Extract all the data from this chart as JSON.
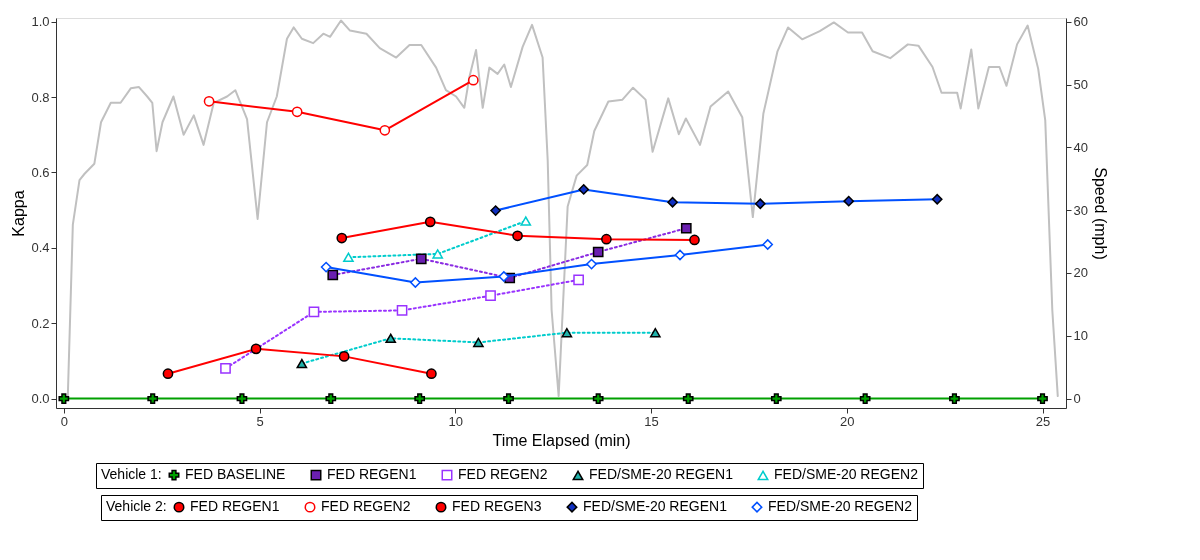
{
  "chart_data": {
    "type": "line",
    "xlabel": "Time Elapsed (min)",
    "ylabel": "Kappa",
    "y2label": "Speed (mph)",
    "xlim": [
      -0.2,
      25.6
    ],
    "xticks": [
      0,
      5,
      10,
      15,
      20,
      25
    ],
    "ylim": [
      -0.025,
      1.01
    ],
    "yticks": [
      {
        "value": 0,
        "label": "0.0"
      },
      {
        "value": 0.2,
        "label": "0.2"
      },
      {
        "value": 0.4,
        "label": "0.4"
      },
      {
        "value": 0.6,
        "label": "0.6"
      },
      {
        "value": 0.8,
        "label": "0.8"
      },
      {
        "value": 1,
        "label": "1.0"
      }
    ],
    "y2lim": [
      -1.5,
      60.6
    ],
    "y2ticks": [
      0,
      10,
      20,
      30,
      40,
      50,
      60
    ],
    "grid": false,
    "legend": "bottom",
    "legend_title": [
      "Vehicle 1:",
      "Vehicle 2:"
    ],
    "series": [
      {
        "axis": "y2",
        "color": "#c0c0c0",
        "marker": "none",
        "line_style": "solid",
        "x": [
          0,
          0.1,
          0.23,
          0.4,
          0.53,
          0.78,
          0.95,
          1.2,
          1.45,
          1.71,
          1.92,
          2.13,
          2.26,
          2.37,
          2.52,
          2.8,
          3.06,
          3.32,
          3.57,
          3.83,
          4.17,
          4.38,
          4.68,
          4.95,
          5.19,
          5.44,
          5.7,
          5.87,
          6.08,
          6.37,
          6.63,
          6.8,
          7.08,
          7.31,
          7.73,
          8.07,
          8.49,
          8.83,
          9.13,
          9.51,
          9.76,
          10.02,
          10.23,
          10.36,
          10.53,
          10.7,
          10.87,
          11.08,
          11.25,
          11.42,
          11.72,
          11.96,
          12.23,
          12.36,
          12.46,
          12.64,
          12.87,
          13.1,
          13.37,
          13.55,
          13.91,
          14.27,
          14.54,
          14.86,
          15.04,
          15.44,
          15.71,
          15.89,
          16.25,
          16.52,
          16.97,
          17.33,
          17.6,
          17.87,
          18.23,
          18.5,
          18.86,
          19.31,
          19.67,
          20.03,
          20.39,
          20.66,
          21.11,
          21.56,
          21.83,
          22.19,
          22.42,
          22.82,
          22.91,
          23.18,
          23.36,
          23.63,
          23.9,
          24.08,
          24.35,
          24.62,
          24.89,
          25.07,
          25.25,
          25.39
        ],
        "values": [
          0,
          0,
          27.7,
          34.8,
          35.8,
          37.4,
          44.0,
          47.1,
          47.1,
          49.4,
          49.6,
          48.1,
          47.1,
          39.4,
          44.0,
          48.1,
          42.0,
          45.1,
          40.4,
          47.1,
          48.1,
          49.1,
          44.5,
          28.6,
          44.0,
          48.1,
          57.3,
          59.1,
          57.3,
          56.6,
          58.1,
          57.6,
          60.2,
          58.6,
          58.1,
          55.8,
          54.3,
          56.3,
          56.3,
          52.7,
          49.1,
          48.1,
          46.3,
          51.2,
          55.5,
          46.3,
          52.7,
          51.7,
          53.2,
          49.6,
          56.0,
          59.5,
          54.3,
          38.0,
          14.1,
          0.4,
          30.6,
          35.5,
          37.2,
          42.6,
          47.3,
          47.6,
          49.5,
          47.6,
          39.3,
          47.8,
          42.1,
          44.6,
          40.4,
          46.5,
          48.9,
          44.8,
          28.9,
          45.4,
          55.3,
          59.1,
          57.2,
          58.5,
          59.9,
          58.3,
          58.3,
          55.3,
          54.2,
          56.4,
          56.2,
          52.8,
          48.7,
          48.7,
          46.2,
          55.6,
          46.2,
          52.8,
          52.8,
          49.8,
          56.4,
          59.4,
          52.5,
          44.3,
          14.1,
          0.4
        ]
      },
      {
        "name": "FED BASELINE",
        "color": "#00a000",
        "marker": "cross",
        "line_style": "solid",
        "x": [
          0,
          2.27,
          4.55,
          6.82,
          9.09,
          11.36,
          13.65,
          15.95,
          18.2,
          20.47,
          22.75,
          25.0
        ],
        "values": [
          0,
          0,
          0,
          0,
          0,
          0,
          0,
          0,
          0,
          0,
          0,
          0
        ]
      },
      {
        "name": "FED REGEN1",
        "color": "#8a2be2",
        "colors": [
          "#6a1fb0",
          "#6a1fb0",
          "#6a1fb0",
          "#6a1fb0",
          "#6a1fb0"
        ],
        "marker": "square",
        "line_style": "dotted",
        "x": [
          6.87,
          9.13,
          11.39,
          13.65,
          15.9
        ],
        "values": [
          0.328,
          0.371,
          0.32,
          0.389,
          0.452
        ]
      },
      {
        "name": "FED REGEN2",
        "color": "#9933ff",
        "colors": [
          "#ffffff",
          "#ffffff",
          "#ffffff",
          "#ffffff",
          "#ffffff"
        ],
        "marker": "square",
        "line_style": "dotted",
        "x": [
          4.13,
          6.39,
          8.64,
          10.9,
          13.15
        ],
        "values": [
          0.08,
          0.23,
          0.234,
          0.273,
          0.315
        ]
      },
      {
        "name": "FED/SME-20 REGEN1",
        "color": "#00cccc",
        "colors": [
          "#20b2aa",
          "#20b2aa",
          "#20b2aa",
          "#20b2aa",
          "#20b2aa"
        ],
        "marker": "triangle",
        "line_style": "dotted",
        "x": [
          6.08,
          8.35,
          10.59,
          12.85,
          15.11
        ],
        "values": [
          0.093,
          0.16,
          0.149,
          0.175,
          0.175
        ]
      },
      {
        "name": "FED/SME-20 REGEN2",
        "color": "#00cccc",
        "colors": [
          "#ffffff",
          "#ffffff",
          "#ffffff"
        ],
        "marker": "triangle",
        "line_style": "dotted",
        "x": [
          7.27,
          9.55,
          11.8
        ],
        "values": [
          0.375,
          0.384,
          0.471
        ]
      },
      {
        "name": "FED REGEN1",
        "color": "#ff0000",
        "marker": "circle",
        "line_style": "solid",
        "x": [
          7.1,
          9.36,
          11.59,
          13.86,
          16.11
        ],
        "values": [
          0.426,
          0.469,
          0.432,
          0.423,
          0.421
        ]
      },
      {
        "name": "FED REGEN2",
        "color": "#ff0000",
        "colors": [
          "#ffffff",
          "#ffffff",
          "#ffffff",
          "#ffffff"
        ],
        "marker": "circle",
        "line_style": "solid",
        "x": [
          3.71,
          5.96,
          8.2,
          10.46
        ],
        "values": [
          0.789,
          0.761,
          0.712,
          0.845
        ]
      },
      {
        "name": "FED REGEN3",
        "color": "#ff0000",
        "marker": "circle",
        "line_style": "solid",
        "x": [
          2.66,
          4.91,
          7.16,
          9.39
        ],
        "values": [
          0.066,
          0.132,
          0.112,
          0.066
        ]
      },
      {
        "name": "FED/SME-20 REGEN1",
        "color": "#0050ff",
        "colors": [
          "#1030c0",
          "#1030c0",
          "#1030c0",
          "#1030c0",
          "#1030c0",
          "#1030c0"
        ],
        "marker": "diamond",
        "line_style": "solid",
        "x": [
          11.03,
          13.28,
          15.55,
          17.79,
          20.05,
          22.31
        ],
        "values": [
          0.499,
          0.555,
          0.521,
          0.517,
          0.524,
          0.529
        ]
      },
      {
        "name": "FED/SME-20 REGEN2",
        "color": "#0050ff",
        "colors": [
          "#ffffff",
          "#ffffff",
          "#ffffff",
          "#ffffff",
          "#ffffff",
          "#ffffff"
        ],
        "marker": "diamond",
        "line_style": "solid",
        "x": [
          6.7,
          8.98,
          11.24,
          13.48,
          15.74,
          17.98
        ],
        "values": [
          0.349,
          0.308,
          0.324,
          0.357,
          0.381,
          0.409
        ]
      }
    ]
  }
}
